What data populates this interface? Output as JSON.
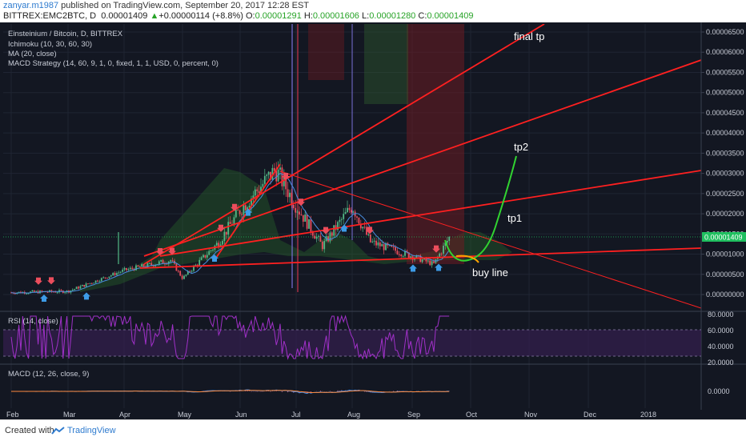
{
  "header": {
    "author": "zanyar.m1987",
    "published": "published on TradingView.com, September 20, 2017 12:28 EST",
    "symbol": "BITTREX:EMC2BTC, D",
    "last": "0.00001409",
    "change_arrow": "▲",
    "change": "+0.00000114 (+8.8%)",
    "o_label": "O:",
    "o_val": "0.00001291",
    "h_label": "H:",
    "h_val": "0.00001606",
    "l_label": "L:",
    "l_val": "0.00001280",
    "c_label": "C:",
    "c_val": "0.00001409"
  },
  "legend": {
    "title": "Einsteinium / Bitcoin, D, BITTREX",
    "ichimoku": "Ichimoku (10, 30, 60, 30)",
    "ma": "MA (20, close)",
    "macd_strategy": "MACD Strategy (14, 60, 9, 1, 0, fixed, 1, 1, USD, 0, percent, 0)"
  },
  "annotations": {
    "final_tp": "final tp",
    "tp2": "tp2",
    "tp1": "tp1",
    "buy_line": "buy line"
  },
  "rsi_panel": {
    "label": "RSI (14, close)"
  },
  "macd_panel": {
    "label": "MACD (12, 26, close, 9)"
  },
  "footer": {
    "created_with": "Created with",
    "brand": "TradingView"
  },
  "colors": {
    "background": "#131722",
    "up": "#53b987",
    "down": "#eb4d5c",
    "trendline": "#ff2020",
    "tp_curve": "#31d431",
    "buy_curve": "#ffa500",
    "price_tag": "#1fbf5f",
    "rsi": "#a030c8",
    "macd": "#3d8ae6",
    "signal": "#ff8a3d"
  },
  "chart_data": {
    "type": "candlestick",
    "title": "Einsteinium / Bitcoin, D, BITTREX",
    "x_ticks": [
      "Feb",
      "Mar",
      "Apr",
      "May",
      "Jun",
      "Jul",
      "Aug",
      "Sep",
      "Oct",
      "Nov",
      "Dec",
      "2018"
    ],
    "y_ticks": [
      "0.00006500",
      "0.00006000",
      "0.00005500",
      "0.00005000",
      "0.00004500",
      "0.00004000",
      "0.00003500",
      "0.00003000",
      "0.00002500",
      "0.00002000",
      "0.00001500",
      "0.00001000",
      "0.00000500",
      "0.00000000"
    ],
    "ylim": [
      0.0,
      6.5e-05
    ],
    "last_price": "0.00001409",
    "price_path": [
      [
        "Feb",
        5e-07
      ],
      [
        "Mar",
        8e-07
      ],
      [
        "Apr",
        6e-06
      ],
      [
        "Apr 25",
        8.5e-06
      ],
      [
        "May",
        4e-06
      ],
      [
        "May 20",
        1.3e-05
      ],
      [
        "Jun",
        2.1e-05
      ],
      [
        "Jun 20",
        3.1e-05
      ],
      [
        "Jul",
        2.2e-05
      ],
      [
        "Jul 15",
        1.2e-05
      ],
      [
        "Aug",
        2.2e-05
      ],
      [
        "Aug 10",
        1.3e-05
      ],
      [
        "Sep",
        9.5e-06
      ],
      [
        "Sep 12",
        7.5e-06
      ],
      [
        "Sep 20",
        1.41e-05
      ]
    ],
    "annotations": [
      "final tp",
      "tp2",
      "tp1",
      "buy line"
    ],
    "rsi": {
      "label": "RSI (14, close)",
      "y_ticks": [
        "80.0000",
        "60.0000",
        "40.0000",
        "20.0000"
      ],
      "ylim": [
        20,
        80
      ]
    },
    "macd": {
      "label": "MACD (12, 26, close, 9)",
      "y_ticks": [
        "0.0000"
      ]
    }
  }
}
